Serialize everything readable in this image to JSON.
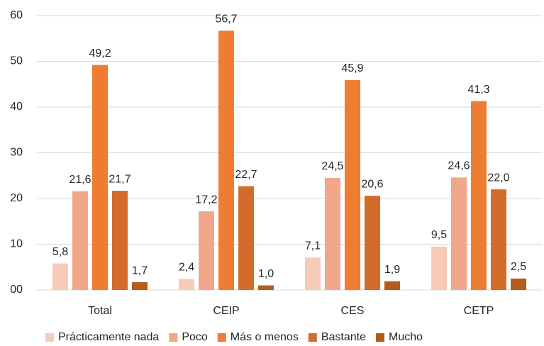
{
  "chart_data": {
    "type": "bar",
    "categories": [
      "Total",
      "CEIP",
      "CES",
      "CETP"
    ],
    "series": [
      {
        "name": "Prácticamente nada",
        "color": "#f8cbb8",
        "values": [
          5.8,
          2.4,
          7.1,
          9.5
        ],
        "value_labels": [
          "5,8",
          "2,4",
          "7,1",
          "9,5"
        ]
      },
      {
        "name": "Poco",
        "color": "#f1a88a",
        "values": [
          21.6,
          17.2,
          24.5,
          24.6
        ],
        "value_labels": [
          "21,6",
          "17,2",
          "24,5",
          "24,6"
        ]
      },
      {
        "name": "Más o menos",
        "color": "#ed7d31",
        "values": [
          49.2,
          56.7,
          45.9,
          41.3
        ],
        "value_labels": [
          "49,2",
          "56,7",
          "45,9",
          "41,3"
        ]
      },
      {
        "name": "Bastante",
        "color": "#d26c2a",
        "values": [
          21.7,
          22.7,
          20.6,
          22.0
        ],
        "value_labels": [
          "21,7",
          "22,7",
          "20,6",
          "22,0"
        ]
      },
      {
        "name": "Mucho",
        "color": "#b55b1c",
        "values": [
          1.7,
          1.0,
          1.9,
          2.5
        ],
        "value_labels": [
          "1,7",
          "1,0",
          "1,9",
          "2,5"
        ]
      }
    ],
    "ylim": [
      0,
      60
    ],
    "yticks": [
      {
        "value": 0,
        "label": "00"
      },
      10,
      20,
      30,
      40,
      50,
      60
    ],
    "grid": true,
    "legend": "bottom"
  }
}
